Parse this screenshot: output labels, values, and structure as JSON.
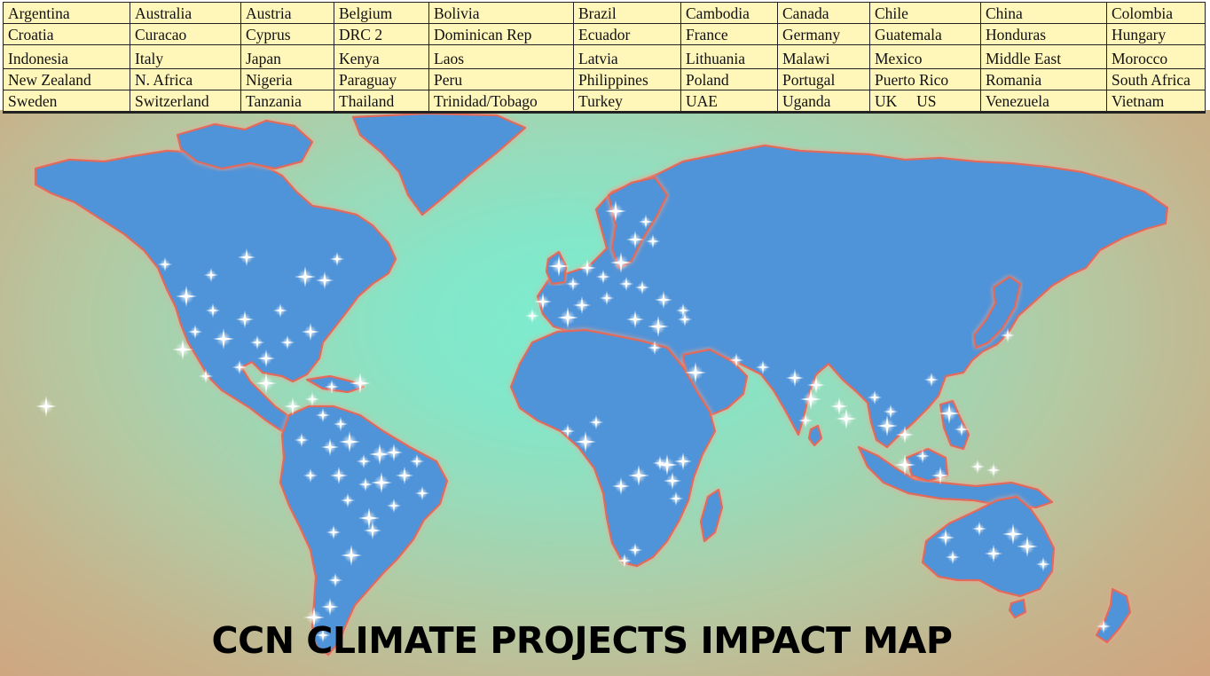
{
  "title": "CCN CLIMATE PROJECTS IMPACT MAP",
  "countries": [
    [
      "Argentina",
      "Australia",
      "Austria",
      "Belgium",
      "Bolivia",
      "Brazil",
      "Cambodia",
      "Canada",
      "Chile",
      "China",
      "Colombia"
    ],
    [
      "Croatia",
      "Curacao",
      "Cyprus",
      "DRC 2",
      "Dominican Rep",
      "Ecuador",
      "France",
      "Germany",
      "Guatemala",
      "Honduras",
      "Hungary"
    ],
    [
      "Indonesia",
      "Italy",
      "Japan",
      "Kenya",
      "Laos",
      "Latvia",
      "Lithuania",
      "Malawi",
      "Mexico",
      "Middle East",
      "Morocco"
    ],
    [
      "New Zealand",
      "N. Africa",
      "Nigeria",
      "Paraguay",
      "Peru",
      "Philippines",
      "Poland",
      "Portugal",
      "Puerto Rico",
      "Romania",
      "South Africa"
    ],
    [
      "Sweden",
      "Switzerland",
      "Tanzania",
      "Thailand",
      "Trinidad/Tobago",
      "Turkey",
      "UAE",
      "Uganda",
      "UK     US",
      "Venezuela",
      "Vietnam"
    ]
  ],
  "colors": {
    "table_background": "#fff6ba",
    "land": "#4f93d8",
    "coast_outline": "#e06b5c",
    "ocean_center": "#7deccf",
    "ocean_edge": "#d2a07a",
    "project_marker": "#ffffff"
  },
  "marker_icon": "sparkle-star-icon"
}
